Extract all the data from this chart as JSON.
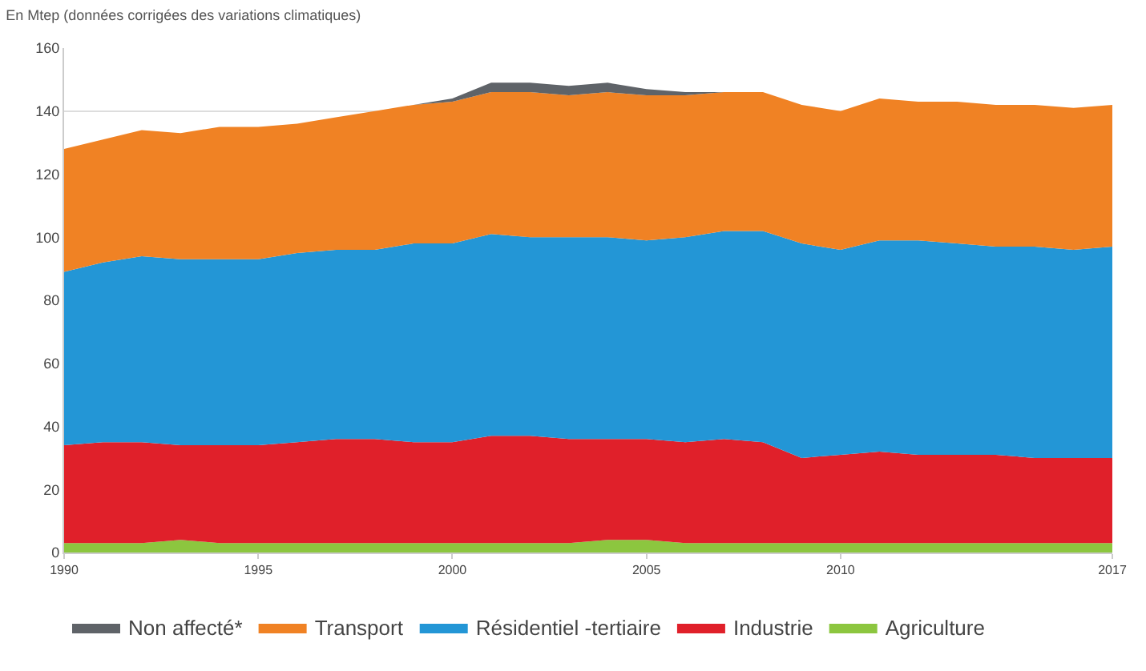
{
  "chart_data": {
    "type": "area",
    "stacked": true,
    "title": "En Mtep (données corrigées des variations climatiques)",
    "x": [
      1990,
      1991,
      1992,
      1993,
      1994,
      1995,
      1996,
      1997,
      1998,
      1999,
      2000,
      2001,
      2002,
      2003,
      2004,
      2005,
      2006,
      2007,
      2008,
      2009,
      2010,
      2011,
      2012,
      2013,
      2014,
      2015,
      2016,
      2017
    ],
    "series": [
      {
        "name": "Agriculture",
        "color": "#8cc63f",
        "values": [
          3,
          3,
          3,
          4,
          3,
          3,
          3,
          3,
          3,
          3,
          3,
          3,
          3,
          3,
          4,
          4,
          3,
          3,
          3,
          3,
          3,
          3,
          3,
          3,
          3,
          3,
          3,
          3
        ]
      },
      {
        "name": "Industrie",
        "color": "#e0202a",
        "values": [
          31,
          32,
          32,
          30,
          31,
          31,
          32,
          33,
          33,
          32,
          32,
          34,
          34,
          33,
          32,
          32,
          32,
          33,
          32,
          27,
          28,
          29,
          28,
          28,
          28,
          27,
          27,
          27
        ]
      },
      {
        "name": "Résidentiel -tertiaire",
        "color": "#2396d6",
        "values": [
          55,
          57,
          59,
          59,
          59,
          59,
          60,
          60,
          60,
          63,
          63,
          64,
          63,
          64,
          64,
          63,
          65,
          66,
          67,
          68,
          65,
          67,
          68,
          67,
          66,
          67,
          66,
          67
        ]
      },
      {
        "name": "Transport",
        "color": "#f08224",
        "values": [
          39,
          39,
          40,
          40,
          42,
          42,
          41,
          42,
          44,
          44,
          45,
          45,
          46,
          45,
          46,
          46,
          45,
          44,
          44,
          44,
          44,
          45,
          44,
          45,
          45,
          45,
          45,
          45
        ]
      },
      {
        "name": "Non affecté*",
        "color": "#5f6368",
        "values": [
          0,
          0,
          0,
          0,
          0,
          0,
          0,
          0,
          0,
          0,
          1,
          3,
          3,
          3,
          3,
          2,
          1,
          0,
          0,
          0,
          0,
          0,
          0,
          0,
          0,
          0,
          0,
          0
        ]
      }
    ],
    "xlim": [
      1990,
      2017
    ],
    "xticks": [
      1990,
      1995,
      2000,
      2005,
      2010,
      2017
    ],
    "ylim": [
      0,
      160
    ],
    "yticks": [
      0,
      20,
      40,
      60,
      80,
      100,
      120,
      140,
      160
    ],
    "grid": "y",
    "legend": "bottom"
  }
}
